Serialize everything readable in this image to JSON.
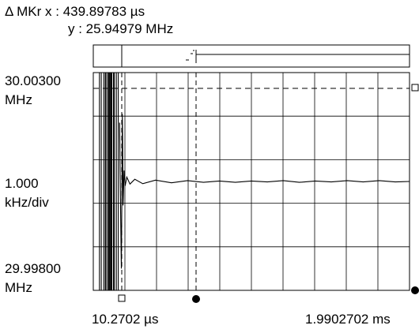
{
  "marker_readout": {
    "delta_x": "Δ MKr x : 439.89783 µs",
    "delta_y": "y : 25.94979 MHz"
  },
  "y_axis": {
    "top_value": "30.00300",
    "top_unit": "MHz",
    "scale_value": "1.000",
    "scale_unit": "kHz/div",
    "bottom_value": "29.99800",
    "bottom_unit": "MHz"
  },
  "x_axis": {
    "start": "10.2702 µs",
    "end": "1.9902702 ms"
  },
  "colors": {
    "trace": "#000000",
    "grid": "#000000",
    "background": "#ffffff"
  },
  "chart_data": {
    "type": "line",
    "title": "",
    "xlabel": "",
    "ylabel": "",
    "xlim_us": [
      10.2702,
      1990.2702
    ],
    "ylim_mhz": [
      29.998,
      30.003
    ],
    "divisions": {
      "x": 10,
      "y": 5
    },
    "grid": true,
    "reference_level_mhz": 30.003,
    "marker_delta_x_us": 439.89783,
    "marker_delta_y_mhz": 25.94979,
    "series": [
      {
        "x_us": [
          10.2702,
          48.7,
          60.5,
          76.3,
          85.7,
          90.2,
          100.8,
          105.3,
          111.1,
          115.9,
          121.8,
          126.2,
          136.4,
          142.5,
          155.0,
          166.9,
          175.0,
          178.0,
          186.0,
          190.0,
          192.0,
          194.0,
          197.0,
          203.0,
          210.0,
          220.0,
          240.0,
          270.0,
          320.0,
          400.0,
          500.0,
          600.0,
          700.0,
          800.0,
          900.0,
          1000.0,
          1100.0,
          1200.0,
          1300.0,
          1400.0,
          1500.0,
          1600.0,
          1700.0,
          1800.0,
          1900.0,
          1990.2702
        ],
        "y_khz_offset": [
          0.0,
          0.0,
          0.0,
          0.0,
          0.0,
          0.0,
          0.0,
          0.0,
          0.0,
          0.0,
          0.0,
          0.0,
          0.0,
          0.0,
          0.0,
          0.0,
          1.35,
          0.2,
          -2.0,
          0.0,
          1.55,
          1.0,
          -0.55,
          0.25,
          -0.1,
          0.1,
          -0.06,
          0.05,
          -0.05,
          0.03,
          -0.03,
          0.02,
          -0.02,
          0.01,
          -0.02,
          0.01,
          -0.01,
          0.02,
          -0.02,
          0.01,
          -0.01,
          0.02,
          -0.01,
          0.02,
          -0.01,
          0.0
        ]
      }
    ]
  }
}
